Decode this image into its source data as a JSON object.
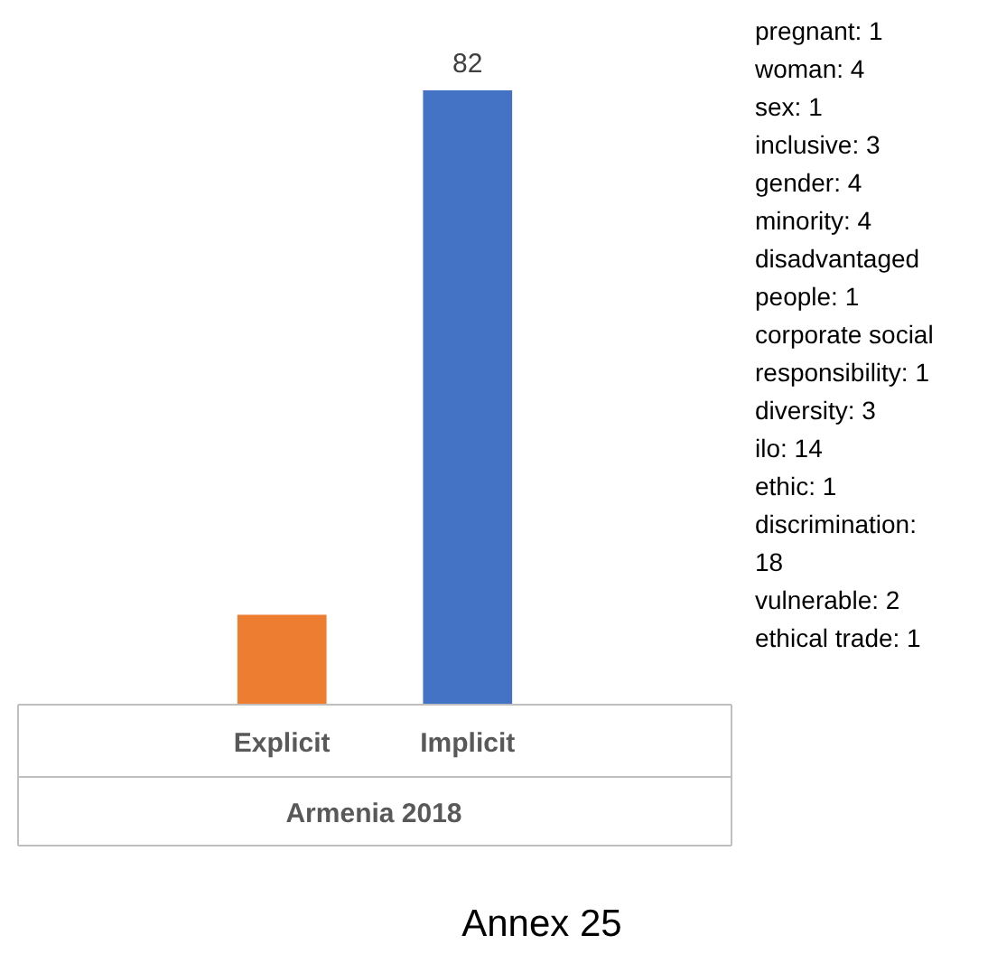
{
  "chart_data": {
    "type": "bar",
    "title": "Annex 25",
    "xlabel": "Armenia 2018",
    "categories": [
      "Explicit",
      "Implicit"
    ],
    "values": [
      12,
      82
    ],
    "colors": [
      "#ed7d31",
      "#4472c4"
    ],
    "value_labels": [
      null,
      "82"
    ],
    "annotations": [
      "pregnant: 1",
      "woman: 4",
      "sex: 1",
      "inclusive: 3",
      "gender: 4",
      "minority: 4",
      "disadvantaged people: 1",
      "corporate social responsibility: 1",
      "diversity: 3",
      "ilo: 14",
      "ethic: 1",
      "discrimination: 18",
      "vulnerable: 2",
      "ethical trade: 1"
    ]
  }
}
